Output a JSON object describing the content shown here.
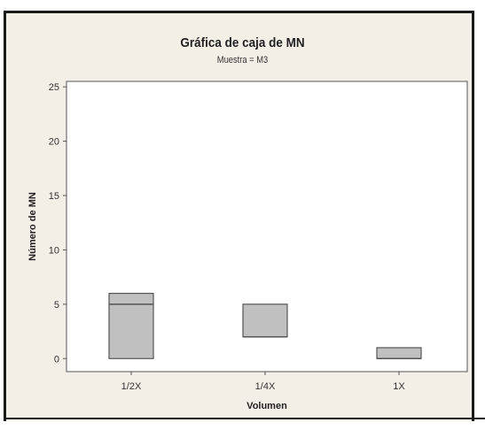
{
  "chart_data": {
    "type": "box",
    "title": "Gráfica de caja de MN",
    "subtitle": "Muestra = M3",
    "xlabel": "Volumen",
    "ylabel": "Número de MN",
    "categories": [
      "1/2X",
      "1/4X",
      "1X"
    ],
    "yticks": [
      0,
      5,
      10,
      15,
      20,
      25
    ],
    "ylim": [
      -1.2,
      25.5
    ],
    "grid": false,
    "boxes": [
      {
        "category": "1/2X",
        "q1": 0,
        "median": 5,
        "q3": 6
      },
      {
        "category": "1/4X",
        "q1": 2,
        "median": 2,
        "q3": 5
      },
      {
        "category": "1X",
        "q1": 0,
        "median": 0,
        "q3": 1
      }
    ],
    "colors": {
      "box_fill": "#c0c0c0",
      "box_stroke": "#555555",
      "plot_bg": "#ffffff",
      "frame_bg": "#f2efe6"
    }
  }
}
